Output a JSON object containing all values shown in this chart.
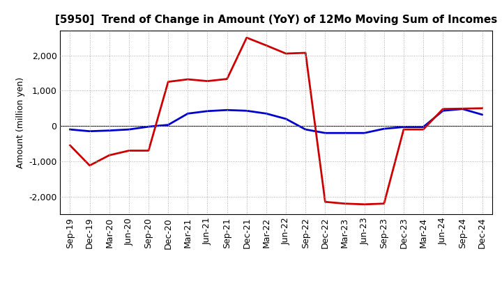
{
  "title": "[5950]  Trend of Change in Amount (YoY) of 12Mo Moving Sum of Incomes",
  "ylabel": "Amount (million yen)",
  "x_labels": [
    "Sep-19",
    "Dec-19",
    "Mar-20",
    "Jun-20",
    "Sep-20",
    "Dec-20",
    "Mar-21",
    "Jun-21",
    "Sep-21",
    "Dec-21",
    "Mar-22",
    "Jun-22",
    "Sep-22",
    "Dec-22",
    "Mar-23",
    "Jun-23",
    "Sep-23",
    "Dec-23",
    "Mar-24",
    "Jun-24",
    "Sep-24",
    "Dec-24"
  ],
  "ordinary_income": [
    -100,
    -150,
    -130,
    -100,
    -20,
    30,
    350,
    420,
    450,
    430,
    350,
    200,
    -100,
    -200,
    -200,
    -200,
    -80,
    -30,
    -30,
    430,
    480,
    320
  ],
  "net_income": [
    -550,
    -1120,
    -830,
    -700,
    -700,
    1250,
    1320,
    1270,
    1330,
    2500,
    2280,
    2050,
    2070,
    -2150,
    -2200,
    -2220,
    -2200,
    -100,
    -100,
    480,
    490,
    500
  ],
  "ylim": [
    -2500,
    2700
  ],
  "yticks": [
    -2000,
    -1000,
    0,
    1000,
    2000
  ],
  "ordinary_color": "#0000cc",
  "net_color": "#cc0000",
  "background_color": "#ffffff",
  "grid_color": "#aaaaaa",
  "line_width": 2.0,
  "legend_text_color": "#555555",
  "title_fontsize": 11,
  "ylabel_fontsize": 9,
  "tick_fontsize": 9,
  "legend_fontsize": 9
}
